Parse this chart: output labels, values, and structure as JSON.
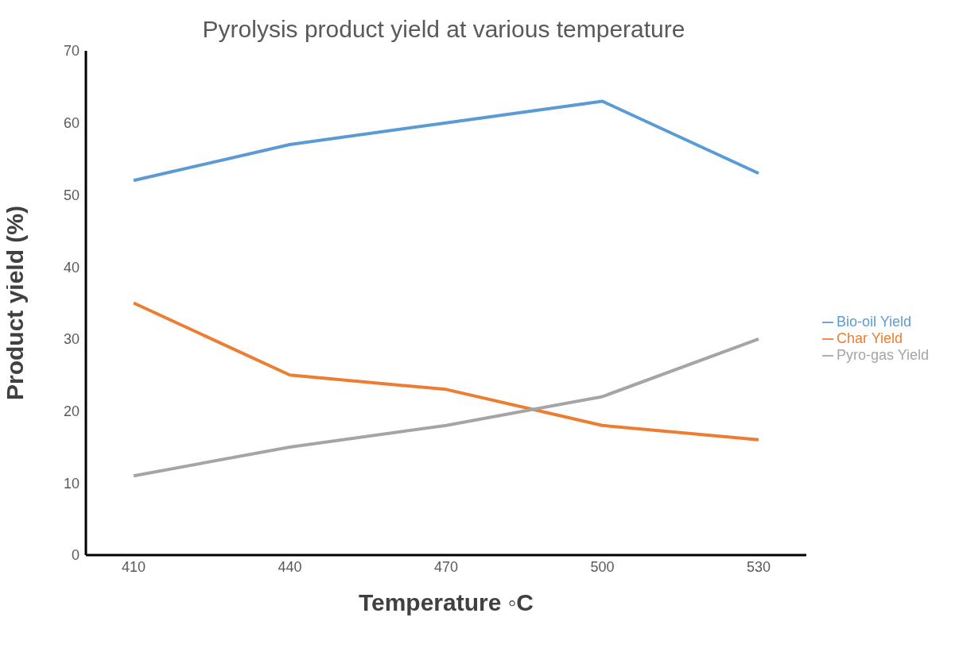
{
  "chart_data": {
    "type": "line",
    "title": "Pyrolysis product yield at various temperature",
    "xlabel": "Temperature ◦C",
    "ylabel": "Product yield (%)",
    "categories": [
      "410",
      "440",
      "470",
      "500",
      "530"
    ],
    "series": [
      {
        "name": "Bio-oil Yield",
        "color": "#5b9bd5",
        "values": [
          52,
          57,
          60,
          63,
          53
        ]
      },
      {
        "name": "Char Yield",
        "color": "#ed7d31",
        "values": [
          35,
          25,
          23,
          18,
          16
        ]
      },
      {
        "name": "Pyro-gas Yield",
        "color": "#a5a5a5",
        "values": [
          11,
          15,
          18,
          22,
          30
        ]
      }
    ],
    "ylim": [
      0,
      70
    ],
    "yticks": [
      0,
      10,
      20,
      30,
      40,
      50,
      60,
      70
    ],
    "legend": "right",
    "line_style": "solid"
  }
}
